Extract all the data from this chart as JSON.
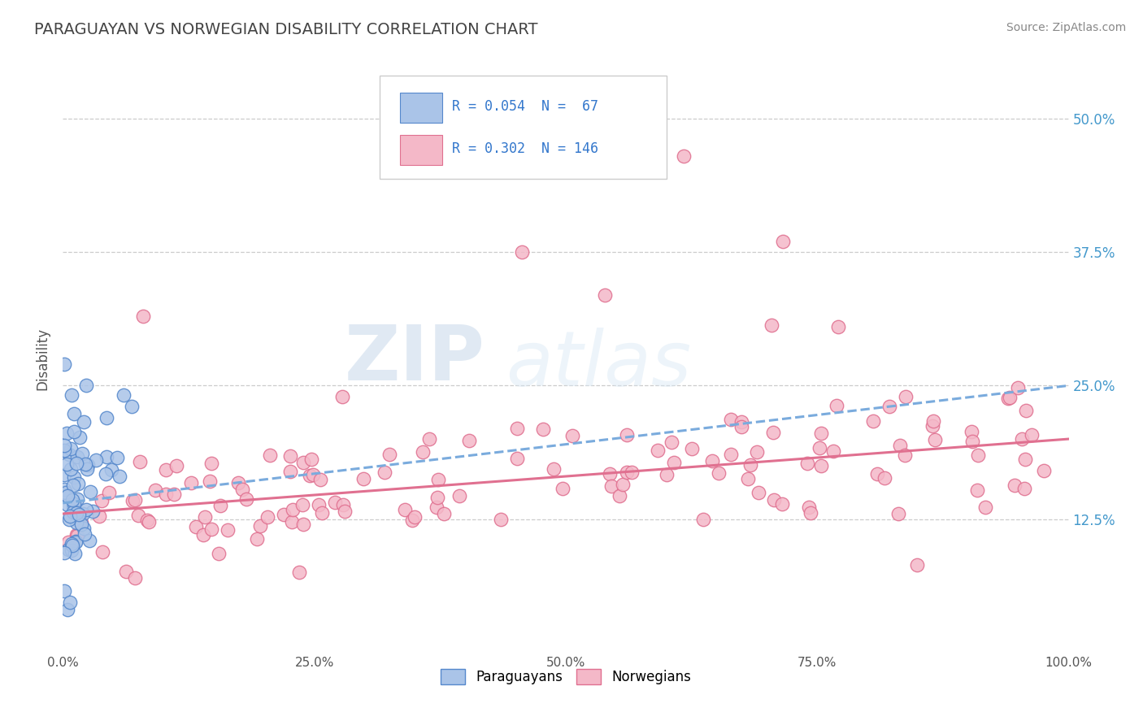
{
  "title": "PARAGUAYAN VS NORWEGIAN DISABILITY CORRELATION CHART",
  "source_text": "Source: ZipAtlas.com",
  "ylabel": "Disability",
  "xlabel": "",
  "legend_entry_1": "R = 0.054  N =  67",
  "legend_entry_2": "R = 0.302  N = 146",
  "legend_labels_bottom": [
    "Paraguayans",
    "Norwegians"
  ],
  "xlim": [
    0.0,
    1.0
  ],
  "ylim": [
    0.0,
    0.55
  ],
  "xticks": [
    0.0,
    0.25,
    0.5,
    0.75,
    1.0
  ],
  "xticklabels": [
    "0.0%",
    "25.0%",
    "50.0%",
    "75.0%",
    "100.0%"
  ],
  "yticks": [
    0.0,
    0.125,
    0.25,
    0.375,
    0.5
  ],
  "yticklabels": [
    "",
    "12.5%",
    "25.0%",
    "37.5%",
    "50.0%"
  ],
  "watermark_zip": "ZIP",
  "watermark_atlas": "atlas",
  "background_color": "#ffffff",
  "grid_color": "#cccccc",
  "paraguayan_scatter_color": "#aac4e8",
  "paraguayan_edge_color": "#5588cc",
  "norwegian_scatter_color": "#f4b8c8",
  "norwegian_edge_color": "#e07090",
  "paraguayan_line_color": "#7aabdd",
  "norwegian_line_color": "#e07090",
  "right_tick_color": "#4499cc",
  "title_color": "#444444",
  "source_color": "#888888"
}
